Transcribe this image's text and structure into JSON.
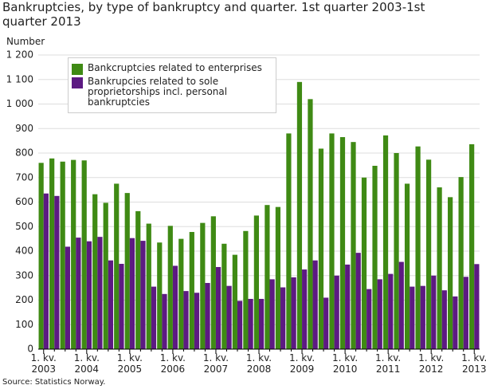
{
  "chart_data": {
    "type": "bar",
    "title": "Bankruptcies, by type of bankruptcy and quarter. 1st quarter 2003-1st quarter 2013",
    "y_label": "Number",
    "source": "Source: Statistics Norway.",
    "categories": [
      "1. kv. 2003",
      null,
      null,
      null,
      "1. kv. 2004",
      null,
      null,
      null,
      "1. kv. 2005",
      null,
      null,
      null,
      "1. kv. 2006",
      null,
      null,
      null,
      "1. kv. 2007",
      null,
      null,
      null,
      "1. kv. 2008",
      null,
      null,
      null,
      "1. kv. 2009",
      null,
      null,
      null,
      "1. kv. 2010",
      null,
      null,
      null,
      "1. kv. 2011",
      null,
      null,
      null,
      "1. kv. 2012",
      null,
      null,
      null,
      "1. kv. 2013"
    ],
    "series": [
      {
        "name": "Bankcruptcies related to enterprises",
        "color": "#3f8a14",
        "values": [
          760,
          778,
          765,
          772,
          770,
          632,
          597,
          675,
          637,
          563,
          512,
          435,
          503,
          450,
          478,
          515,
          542,
          430,
          385,
          482,
          545,
          588,
          580,
          880,
          1090,
          1020,
          818,
          880,
          865,
          845,
          700,
          748,
          872,
          800,
          675,
          827,
          773,
          660,
          620,
          702,
          836
        ]
      },
      {
        "name": "Bankrupcies related to sole proprietorships incl. personal bankruptcies",
        "color": "#5c1a82",
        "values": [
          635,
          625,
          418,
          455,
          440,
          458,
          362,
          348,
          453,
          442,
          255,
          225,
          340,
          237,
          230,
          270,
          335,
          258,
          197,
          205,
          205,
          285,
          252,
          293,
          325,
          362,
          210,
          300,
          345,
          393,
          245,
          285,
          307,
          356,
          255,
          258,
          300,
          240,
          215,
          295,
          347
        ]
      }
    ],
    "ylim": [
      0,
      1200
    ],
    "yticks": [
      0,
      100,
      200,
      300,
      400,
      500,
      600,
      700,
      800,
      900,
      {
        "value": 1000,
        "label": "1 000"
      },
      {
        "value": 1100,
        "label": "1 100"
      },
      {
        "value": 1200,
        "label": "1 200"
      }
    ],
    "grid": true,
    "legend": "top-left"
  }
}
